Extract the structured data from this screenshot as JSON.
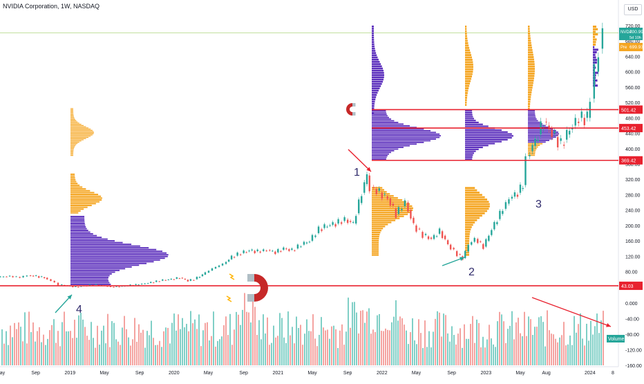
{
  "header": {
    "title": "NVIDIA Corporation, 1W, NASDAQ",
    "currency": "USD"
  },
  "colors": {
    "up": "#26a69a",
    "down": "#ef5350",
    "profile_purple": "#5b2ebc",
    "profile_orange": "#f5a623",
    "level_line": "#e8222f",
    "annotation_number": "#2f2a6b",
    "axis_text": "#131722"
  },
  "chart_data": {
    "type": "candlestick",
    "symbol": "NVDA",
    "price_axis": {
      "ticks": [
        "720.00",
        "680.00",
        "640.00",
        "600.00",
        "560.00",
        "520.00",
        "480.00",
        "440.00",
        "400.00",
        "360.00",
        "320.00",
        "280.00",
        "240.00",
        "200.00",
        "160.00",
        "120.00",
        "80.00"
      ],
      "range": [
        60,
        740
      ]
    },
    "volume_axis": {
      "ticks": [
        "0.000",
        "-40.00",
        "-80.00",
        "-120.00",
        "-160.00"
      ],
      "label": "Volume"
    },
    "time_axis": {
      "labels": [
        "May",
        "Sep",
        "2019",
        "May",
        "Sep",
        "2020",
        "May",
        "Sep",
        "2021",
        "May",
        "Sep",
        "2022",
        "May",
        "Sep",
        "2023",
        "May",
        "Aug",
        "2024",
        "8"
      ]
    },
    "price_labels": [
      {
        "symbol": "NVDA",
        "value": "700.99",
        "sub": "5d 10h",
        "kind": "last"
      },
      {
        "symbol": "Pre",
        "value": "699.93",
        "kind": "pre"
      }
    ],
    "levels": [
      {
        "value": 501.42,
        "label": "501.42"
      },
      {
        "value": 453.42,
        "label": "453.42"
      },
      {
        "value": 369.42,
        "label": "369.42"
      },
      {
        "value": 43.03,
        "label": "43.03"
      }
    ],
    "annotations": [
      {
        "text": "1",
        "at": "2021-11 peak"
      },
      {
        "text": "2",
        "at": "2022-10 low"
      },
      {
        "text": "3",
        "at": "2023-05 gap"
      },
      {
        "text": "4",
        "at": "2018-12 low"
      }
    ],
    "price_series_approx": [
      [
        2018.33,
        66
      ],
      [
        2018.45,
        68
      ],
      [
        2018.55,
        65
      ],
      [
        2018.62,
        70
      ],
      [
        2018.7,
        68
      ],
      [
        2018.78,
        64
      ],
      [
        2018.85,
        56
      ],
      [
        2018.92,
        46
      ],
      [
        2019.0,
        43
      ],
      [
        2019.08,
        40
      ],
      [
        2019.16,
        43
      ],
      [
        2019.25,
        46
      ],
      [
        2019.33,
        44
      ],
      [
        2019.42,
        40
      ],
      [
        2019.5,
        41
      ],
      [
        2019.58,
        44
      ],
      [
        2019.66,
        46
      ],
      [
        2019.75,
        49
      ],
      [
        2019.83,
        53
      ],
      [
        2019.92,
        58
      ],
      [
        2020.0,
        60
      ],
      [
        2020.08,
        64
      ],
      [
        2020.16,
        56
      ],
      [
        2020.22,
        60
      ],
      [
        2020.3,
        72
      ],
      [
        2020.4,
        88
      ],
      [
        2020.5,
        100
      ],
      [
        2020.58,
        118
      ],
      [
        2020.67,
        128
      ],
      [
        2020.75,
        135
      ],
      [
        2020.83,
        132
      ],
      [
        2020.92,
        136
      ],
      [
        2021.0,
        130
      ],
      [
        2021.08,
        140
      ],
      [
        2021.16,
        135
      ],
      [
        2021.25,
        150
      ],
      [
        2021.33,
        160
      ],
      [
        2021.42,
        190
      ],
      [
        2021.5,
        200
      ],
      [
        2021.58,
        205
      ],
      [
        2021.67,
        215
      ],
      [
        2021.75,
        205
      ],
      [
        2021.83,
        285
      ],
      [
        2021.88,
        330
      ],
      [
        2021.92,
        300
      ],
      [
        2022.0,
        285
      ],
      [
        2022.08,
        270
      ],
      [
        2022.16,
        230
      ],
      [
        2022.25,
        260
      ],
      [
        2022.33,
        200
      ],
      [
        2022.42,
        175
      ],
      [
        2022.5,
        165
      ],
      [
        2022.58,
        185
      ],
      [
        2022.66,
        150
      ],
      [
        2022.75,
        125
      ],
      [
        2022.8,
        115
      ],
      [
        2022.86,
        150
      ],
      [
        2022.92,
        165
      ],
      [
        2023.0,
        145
      ],
      [
        2023.08,
        190
      ],
      [
        2023.16,
        230
      ],
      [
        2023.25,
        270
      ],
      [
        2023.33,
        285
      ],
      [
        2023.38,
        305
      ],
      [
        2023.42,
        380
      ],
      [
        2023.5,
        420
      ],
      [
        2023.58,
        470
      ],
      [
        2023.66,
        440
      ],
      [
        2023.75,
        410
      ],
      [
        2023.83,
        450
      ],
      [
        2023.92,
        480
      ],
      [
        2024.0,
        480
      ],
      [
        2024.04,
        530
      ],
      [
        2024.08,
        600
      ],
      [
        2024.12,
        660
      ],
      [
        2024.16,
        701
      ]
    ]
  }
}
